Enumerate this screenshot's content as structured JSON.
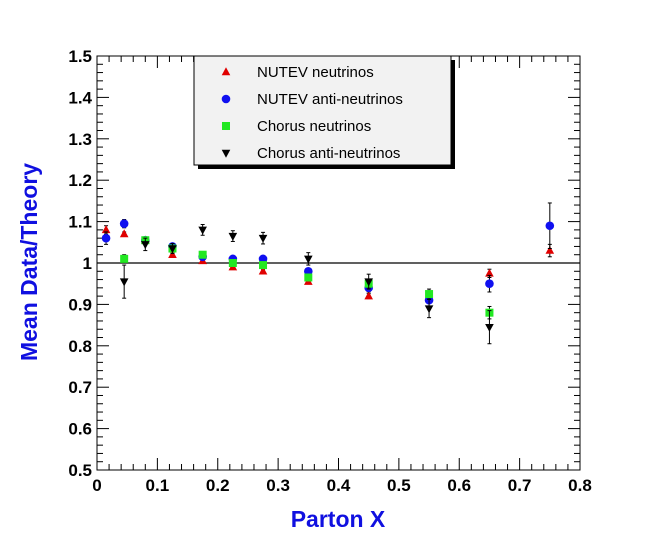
{
  "chart_data": {
    "type": "scatter",
    "title": "",
    "xlabel": "Parton X",
    "ylabel": "Mean Data/Theory",
    "xlim": [
      0,
      0.8
    ],
    "ylim": [
      0.5,
      1.5
    ],
    "x_ticks": [
      "0",
      "0.1",
      "0.2",
      "0.3",
      "0.4",
      "0.5",
      "0.6",
      "0.7",
      "0.8"
    ],
    "y_ticks": [
      "0.5",
      "0.6",
      "0.7",
      "0.8",
      "0.9",
      "1",
      "1.1",
      "1.2",
      "1.3",
      "1.4",
      "1.5"
    ],
    "reference_line": 1.0,
    "legend_position": "top-center",
    "series": [
      {
        "name": "NUTEV neutrinos",
        "marker": "triangle-up",
        "color": "#e00000",
        "points": [
          {
            "x": 0.015,
            "y": 1.08,
            "err": 0.01
          },
          {
            "x": 0.045,
            "y": 1.07,
            "err": 0.005
          },
          {
            "x": 0.08,
            "y": 1.055,
            "err": 0.005
          },
          {
            "x": 0.125,
            "y": 1.02,
            "err": 0.004
          },
          {
            "x": 0.175,
            "y": 1.005,
            "err": 0.004
          },
          {
            "x": 0.225,
            "y": 0.99,
            "err": 0.004
          },
          {
            "x": 0.275,
            "y": 0.98,
            "err": 0.005
          },
          {
            "x": 0.35,
            "y": 0.955,
            "err": 0.005
          },
          {
            "x": 0.45,
            "y": 0.92,
            "err": 0.006
          },
          {
            "x": 0.55,
            "y": 0.92,
            "err": 0.008
          },
          {
            "x": 0.65,
            "y": 0.975,
            "err": 0.01
          },
          {
            "x": 0.75,
            "y": 1.03,
            "err": 0.015
          }
        ]
      },
      {
        "name": "NUTEV anti-neutrinos",
        "marker": "circle",
        "color": "#1010f0",
        "points": [
          {
            "x": 0.015,
            "y": 1.06,
            "err": 0.015
          },
          {
            "x": 0.045,
            "y": 1.095,
            "err": 0.01
          },
          {
            "x": 0.08,
            "y": 1.055,
            "err": 0.006
          },
          {
            "x": 0.125,
            "y": 1.04,
            "err": 0.005
          },
          {
            "x": 0.175,
            "y": 1.015,
            "err": 0.005
          },
          {
            "x": 0.225,
            "y": 1.01,
            "err": 0.005
          },
          {
            "x": 0.275,
            "y": 1.01,
            "err": 0.006
          },
          {
            "x": 0.35,
            "y": 0.98,
            "err": 0.007
          },
          {
            "x": 0.45,
            "y": 0.94,
            "err": 0.01
          },
          {
            "x": 0.55,
            "y": 0.91,
            "err": 0.015
          },
          {
            "x": 0.65,
            "y": 0.95,
            "err": 0.02
          },
          {
            "x": 0.75,
            "y": 1.09,
            "err": 0.055
          }
        ]
      },
      {
        "name": "Chorus neutrinos",
        "marker": "square",
        "color": "#22e822",
        "points": [
          {
            "x": 0.045,
            "y": 1.01,
            "err": 0.01
          },
          {
            "x": 0.08,
            "y": 1.055,
            "err": 0.007
          },
          {
            "x": 0.125,
            "y": 1.035,
            "err": 0.006
          },
          {
            "x": 0.175,
            "y": 1.02,
            "err": 0.006
          },
          {
            "x": 0.225,
            "y": 1.0,
            "err": 0.006
          },
          {
            "x": 0.275,
            "y": 0.995,
            "err": 0.007
          },
          {
            "x": 0.35,
            "y": 0.965,
            "err": 0.008
          },
          {
            "x": 0.45,
            "y": 0.95,
            "err": 0.01
          },
          {
            "x": 0.55,
            "y": 0.925,
            "err": 0.012
          },
          {
            "x": 0.65,
            "y": 0.88,
            "err": 0.015
          }
        ]
      },
      {
        "name": "Chorus anti-neutrinos",
        "marker": "triangle-down",
        "color": "#000000",
        "points": [
          {
            "x": 0.045,
            "y": 0.955,
            "err": 0.04
          },
          {
            "x": 0.08,
            "y": 1.045,
            "err": 0.015
          },
          {
            "x": 0.125,
            "y": 1.035,
            "err": 0.012
          },
          {
            "x": 0.175,
            "y": 1.08,
            "err": 0.013
          },
          {
            "x": 0.225,
            "y": 1.065,
            "err": 0.013
          },
          {
            "x": 0.275,
            "y": 1.06,
            "err": 0.014
          },
          {
            "x": 0.35,
            "y": 1.01,
            "err": 0.015
          },
          {
            "x": 0.45,
            "y": 0.955,
            "err": 0.018
          },
          {
            "x": 0.55,
            "y": 0.89,
            "err": 0.022
          },
          {
            "x": 0.65,
            "y": 0.845,
            "err": 0.04
          }
        ]
      }
    ]
  }
}
